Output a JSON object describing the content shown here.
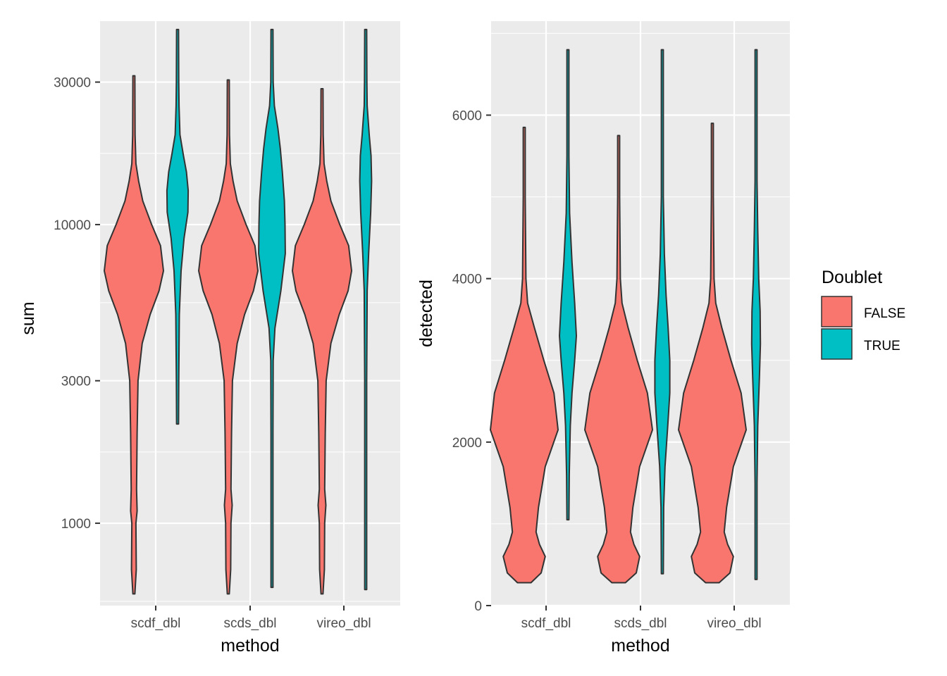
{
  "chart_data": [
    {
      "type": "violin",
      "panel": "left",
      "xlabel": "method",
      "ylabel": "sum",
      "y_scale": "log10",
      "ylim": [
        530,
        48000
      ],
      "y_ticks": [
        1000,
        3000,
        10000,
        30000
      ],
      "y_tick_labels": [
        "1000",
        "3000",
        "10000",
        "30000"
      ],
      "y_minor_ticks": [
        547.7,
        1732,
        5477,
        17321
      ],
      "categories": [
        "scdf_dbl",
        "scds_dbl",
        "vireo_dbl"
      ],
      "series": [
        {
          "name": "FALSE",
          "violins": [
            {
              "method": "scdf_dbl",
              "min": 580,
              "max": 31500,
              "profile": [
                [
                  580,
                  0.02
                ],
                [
                  700,
                  0.08
                ],
                [
                  1000,
                  0.07
                ],
                [
                  1100,
                  0.11
                ],
                [
                  1300,
                  0.09
                ],
                [
                  2000,
                  0.11
                ],
                [
                  3000,
                  0.14
                ],
                [
                  4000,
                  0.28
                ],
                [
                  5000,
                  0.55
                ],
                [
                  6000,
                  0.85
                ],
                [
                  7000,
                  1.0
                ],
                [
                  8500,
                  0.9
                ],
                [
                  10000,
                  0.6
                ],
                [
                  12000,
                  0.3
                ],
                [
                  14000,
                  0.16
                ],
                [
                  16000,
                  0.07
                ],
                [
                  20000,
                  0.04
                ],
                [
                  31500,
                  0.02
                ]
              ]
            },
            {
              "method": "scds_dbl",
              "min": 580,
              "max": 30500,
              "profile": [
                [
                  580,
                  0.02
                ],
                [
                  700,
                  0.08
                ],
                [
                  1000,
                  0.09
                ],
                [
                  1150,
                  0.13
                ],
                [
                  1300,
                  0.09
                ],
                [
                  2000,
                  0.11
                ],
                [
                  3000,
                  0.14
                ],
                [
                  4000,
                  0.3
                ],
                [
                  5000,
                  0.55
                ],
                [
                  6000,
                  0.85
                ],
                [
                  7000,
                  1.0
                ],
                [
                  8500,
                  0.9
                ],
                [
                  10000,
                  0.6
                ],
                [
                  12000,
                  0.3
                ],
                [
                  14000,
                  0.16
                ],
                [
                  16000,
                  0.07
                ],
                [
                  20000,
                  0.04
                ],
                [
                  30500,
                  0.02
                ]
              ]
            },
            {
              "method": "vireo_dbl",
              "min": 580,
              "max": 28500,
              "profile": [
                [
                  580,
                  0.02
                ],
                [
                  700,
                  0.08
                ],
                [
                  1000,
                  0.09
                ],
                [
                  1150,
                  0.13
                ],
                [
                  1300,
                  0.09
                ],
                [
                  2000,
                  0.11
                ],
                [
                  3000,
                  0.14
                ],
                [
                  4000,
                  0.3
                ],
                [
                  5000,
                  0.58
                ],
                [
                  6000,
                  0.88
                ],
                [
                  7000,
                  1.0
                ],
                [
                  8500,
                  0.9
                ],
                [
                  10000,
                  0.6
                ],
                [
                  12000,
                  0.3
                ],
                [
                  14000,
                  0.16
                ],
                [
                  16000,
                  0.07
                ],
                [
                  20000,
                  0.04
                ],
                [
                  28500,
                  0.02
                ]
              ]
            }
          ]
        },
        {
          "name": "TRUE",
          "violins": [
            {
              "method": "scdf_dbl",
              "min": 2150,
              "max": 45000,
              "profile": [
                [
                  2150,
                  0.03
                ],
                [
                  3000,
                  0.04
                ],
                [
                  5000,
                  0.06
                ],
                [
                  7000,
                  0.12
                ],
                [
                  9000,
                  0.22
                ],
                [
                  11000,
                  0.35
                ],
                [
                  13000,
                  0.36
                ],
                [
                  15000,
                  0.3
                ],
                [
                  17000,
                  0.2
                ],
                [
                  20000,
                  0.08
                ],
                [
                  25000,
                  0.05
                ],
                [
                  30000,
                  0.04
                ],
                [
                  45000,
                  0.03
                ]
              ]
            },
            {
              "method": "scds_dbl",
              "min": 610,
              "max": 45000,
              "profile": [
                [
                  610,
                  0.03
                ],
                [
                  2000,
                  0.03
                ],
                [
                  3500,
                  0.04
                ],
                [
                  4500,
                  0.1
                ],
                [
                  6000,
                  0.3
                ],
                [
                  8000,
                  0.45
                ],
                [
                  10000,
                  0.44
                ],
                [
                  12000,
                  0.42
                ],
                [
                  15000,
                  0.35
                ],
                [
                  18000,
                  0.28
                ],
                [
                  21000,
                  0.2
                ],
                [
                  25000,
                  0.08
                ],
                [
                  30000,
                  0.04
                ],
                [
                  45000,
                  0.03
                ]
              ]
            },
            {
              "method": "vireo_dbl",
              "min": 600,
              "max": 45000,
              "profile": [
                [
                  600,
                  0.03
                ],
                [
                  3000,
                  0.03
                ],
                [
                  6000,
                  0.05
                ],
                [
                  8000,
                  0.1
                ],
                [
                  11000,
                  0.17
                ],
                [
                  14000,
                  0.2
                ],
                [
                  17000,
                  0.18
                ],
                [
                  20000,
                  0.12
                ],
                [
                  25000,
                  0.05
                ],
                [
                  30000,
                  0.04
                ],
                [
                  45000,
                  0.03
                ]
              ]
            }
          ]
        }
      ]
    },
    {
      "type": "violin",
      "panel": "right",
      "xlabel": "method",
      "ylabel": "detected",
      "y_scale": "linear",
      "ylim": [
        0,
        7150
      ],
      "y_ticks": [
        0,
        2000,
        4000,
        6000
      ],
      "y_tick_labels": [
        "0",
        "2000",
        "4000",
        "6000"
      ],
      "y_minor_ticks": [
        1000,
        3000,
        5000,
        7000
      ],
      "categories": [
        "scdf_dbl",
        "scds_dbl",
        "vireo_dbl"
      ],
      "series": [
        {
          "name": "FALSE",
          "violins": [
            {
              "method": "scdf_dbl",
              "min": 280,
              "max": 5850,
              "profile": [
                [
                  280,
                  0.2
                ],
                [
                  400,
                  0.5
                ],
                [
                  600,
                  0.62
                ],
                [
                  750,
                  0.45
                ],
                [
                  900,
                  0.35
                ],
                [
                  1200,
                  0.42
                ],
                [
                  1700,
                  0.62
                ],
                [
                  2150,
                  1.0
                ],
                [
                  2600,
                  0.88
                ],
                [
                  3000,
                  0.58
                ],
                [
                  3400,
                  0.3
                ],
                [
                  3700,
                  0.1
                ],
                [
                  4000,
                  0.05
                ],
                [
                  5000,
                  0.03
                ],
                [
                  5850,
                  0.02
                ]
              ]
            },
            {
              "method": "scds_dbl",
              "min": 280,
              "max": 5750,
              "profile": [
                [
                  280,
                  0.2
                ],
                [
                  400,
                  0.52
                ],
                [
                  600,
                  0.62
                ],
                [
                  750,
                  0.45
                ],
                [
                  900,
                  0.35
                ],
                [
                  1200,
                  0.42
                ],
                [
                  1700,
                  0.62
                ],
                [
                  2150,
                  1.0
                ],
                [
                  2600,
                  0.85
                ],
                [
                  3000,
                  0.55
                ],
                [
                  3400,
                  0.28
                ],
                [
                  3700,
                  0.1
                ],
                [
                  4000,
                  0.05
                ],
                [
                  5000,
                  0.03
                ],
                [
                  5750,
                  0.02
                ]
              ]
            },
            {
              "method": "vireo_dbl",
              "min": 280,
              "max": 5900,
              "profile": [
                [
                  280,
                  0.2
                ],
                [
                  400,
                  0.52
                ],
                [
                  600,
                  0.62
                ],
                [
                  750,
                  0.45
                ],
                [
                  900,
                  0.35
                ],
                [
                  1200,
                  0.42
                ],
                [
                  1700,
                  0.62
                ],
                [
                  2150,
                  1.0
                ],
                [
                  2600,
                  0.85
                ],
                [
                  3000,
                  0.55
                ],
                [
                  3400,
                  0.28
                ],
                [
                  3700,
                  0.1
                ],
                [
                  4000,
                  0.05
                ],
                [
                  5000,
                  0.03
                ],
                [
                  5900,
                  0.02
                ]
              ]
            }
          ]
        },
        {
          "name": "TRUE",
          "violins": [
            {
              "method": "scdf_dbl",
              "min": 1050,
              "max": 6800,
              "profile": [
                [
                  1050,
                  0.03
                ],
                [
                  1600,
                  0.04
                ],
                [
                  2200,
                  0.07
                ],
                [
                  2600,
                  0.12
                ],
                [
                  3000,
                  0.2
                ],
                [
                  3300,
                  0.25
                ],
                [
                  3700,
                  0.2
                ],
                [
                  4200,
                  0.12
                ],
                [
                  4800,
                  0.05
                ],
                [
                  5500,
                  0.03
                ],
                [
                  6800,
                  0.02
                ]
              ]
            },
            {
              "method": "scds_dbl",
              "min": 390,
              "max": 6800,
              "profile": [
                [
                  390,
                  0.02
                ],
                [
                  1200,
                  0.04
                ],
                [
                  1700,
                  0.08
                ],
                [
                  2200,
                  0.16
                ],
                [
                  2600,
                  0.22
                ],
                [
                  3000,
                  0.22
                ],
                [
                  3400,
                  0.17
                ],
                [
                  3800,
                  0.11
                ],
                [
                  4300,
                  0.06
                ],
                [
                  5000,
                  0.03
                ],
                [
                  6800,
                  0.02
                ]
              ]
            },
            {
              "method": "vireo_dbl",
              "min": 320,
              "max": 6800,
              "profile": [
                [
                  320,
                  0.02
                ],
                [
                  1500,
                  0.03
                ],
                [
                  2200,
                  0.05
                ],
                [
                  2800,
                  0.1
                ],
                [
                  3200,
                  0.13
                ],
                [
                  3600,
                  0.12
                ],
                [
                  4000,
                  0.08
                ],
                [
                  4600,
                  0.05
                ],
                [
                  5200,
                  0.03
                ],
                [
                  6800,
                  0.02
                ]
              ]
            }
          ]
        }
      ]
    }
  ],
  "legend": {
    "title": "Doublet",
    "items": [
      {
        "label": "FALSE",
        "color": "#F8766D"
      },
      {
        "label": "TRUE",
        "color": "#00BFC4"
      }
    ]
  },
  "colors": {
    "panel_background": "#EBEBEB",
    "grid": "#FFFFFF",
    "outline": "#333333",
    "FALSE": "#F8766D",
    "TRUE": "#00BFC4"
  }
}
